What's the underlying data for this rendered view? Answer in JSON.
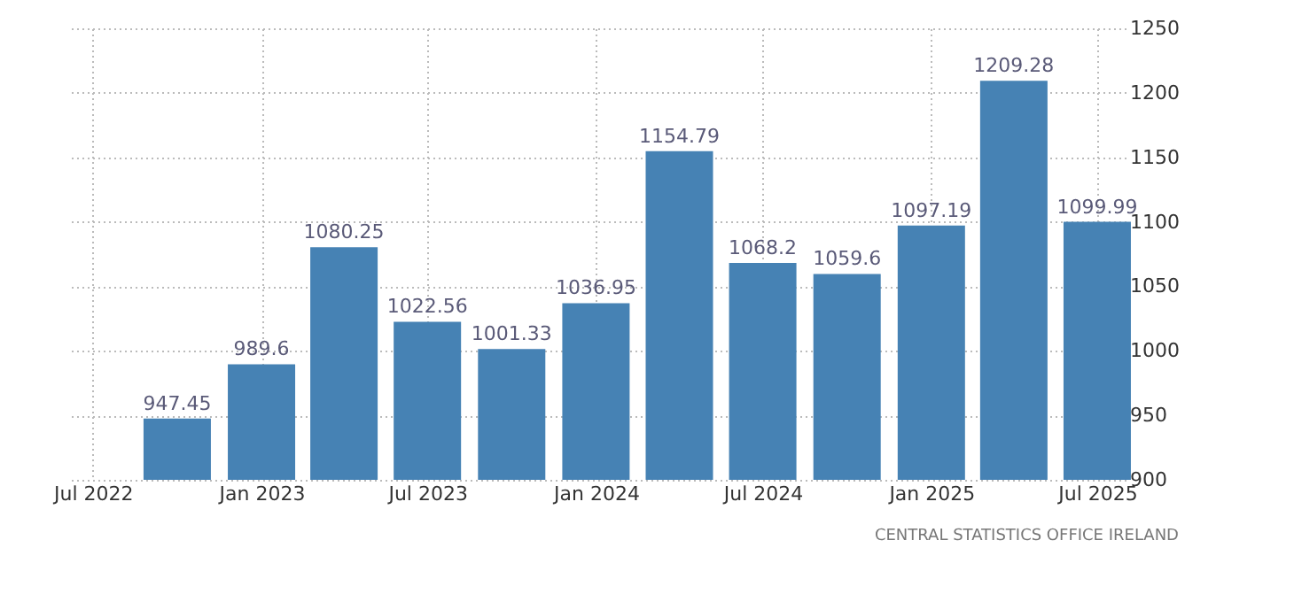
{
  "chart_data": {
    "type": "bar",
    "x": [
      "2022-10",
      "2023-01",
      "2023-04",
      "2023-07",
      "2023-10",
      "2024-01",
      "2024-04",
      "2024-07",
      "2024-10",
      "2025-01",
      "2025-04",
      "2025-07"
    ],
    "values": [
      947.45,
      989.6,
      1080.25,
      1022.56,
      1001.33,
      1036.95,
      1154.79,
      1068.2,
      1059.6,
      1097.19,
      1209.28,
      1099.99
    ],
    "color": "#4682b4",
    "data_labels": true,
    "xlim": [
      "2022-06-07",
      "2025-08-01"
    ],
    "xticks": [
      {
        "value": "2022-07",
        "label": "Jul 2022"
      },
      {
        "value": "2023-01",
        "label": "Jan 2023"
      },
      {
        "value": "2023-07",
        "label": "Jul 2023"
      },
      {
        "value": "2024-01",
        "label": "Jan 2024"
      },
      {
        "value": "2024-07",
        "label": "Jul 2024"
      },
      {
        "value": "2025-01",
        "label": "Jan 2025"
      },
      {
        "value": "2025-07",
        "label": "Jul 2025"
      }
    ],
    "ylim": [
      900,
      1250
    ],
    "yticks": [
      900,
      950,
      1000,
      1050,
      1100,
      1150,
      1200,
      1250
    ],
    "grid": true,
    "annotations": [
      "CENTRAL STATISTICS OFFICE IRELAND"
    ]
  }
}
